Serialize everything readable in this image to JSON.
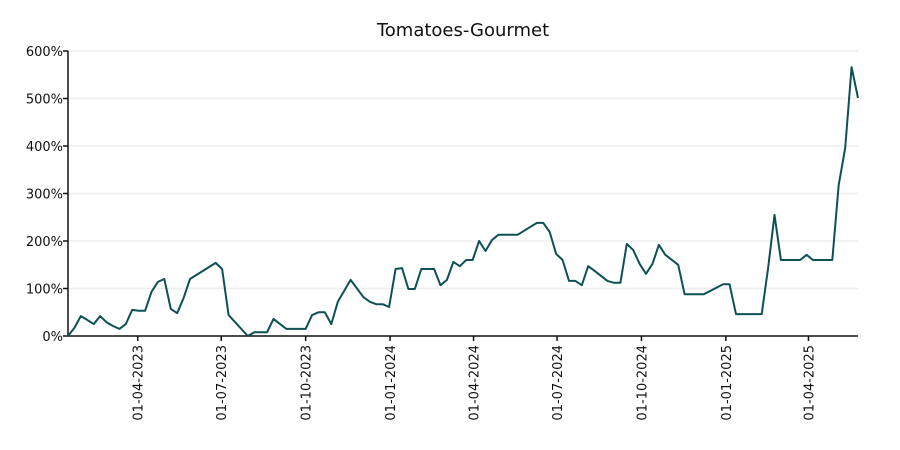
{
  "chart_data": {
    "type": "line",
    "title": "Tomatoes-Gourmet",
    "xlabel": "",
    "ylabel": "",
    "ylim": [
      0,
      600
    ],
    "xlim": [
      "2023-01-15",
      "2025-05-25"
    ],
    "grid": "horizontal",
    "y_ticks": [
      0,
      100,
      200,
      300,
      400,
      500,
      600
    ],
    "y_tick_labels": [
      "0%",
      "100%",
      "200%",
      "300%",
      "400%",
      "500%",
      "600%"
    ],
    "x_ticks": [
      "2023-04-01",
      "2023-07-01",
      "2023-10-01",
      "2024-01-01",
      "2024-04-01",
      "2024-07-01",
      "2024-10-01",
      "2025-01-01",
      "2025-04-01"
    ],
    "x_tick_labels": [
      "01-04-2023",
      "01-07-2023",
      "01-10-2023",
      "01-01-2024",
      "01-04-2024",
      "01-07-2024",
      "01-10-2024",
      "01-01-2025",
      "01-04-2025"
    ],
    "color": "#0d5155",
    "series": [
      {
        "name": "Tomatoes-Gourmet",
        "x": [
          "2023-01-15",
          "2023-01-22",
          "2023-01-29",
          "2023-02-05",
          "2023-02-12",
          "2023-02-19",
          "2023-02-26",
          "2023-03-05",
          "2023-03-12",
          "2023-03-19",
          "2023-03-26",
          "2023-04-02",
          "2023-04-09",
          "2023-04-16",
          "2023-04-23",
          "2023-04-30",
          "2023-05-07",
          "2023-05-14",
          "2023-05-21",
          "2023-05-28",
          "2023-06-25",
          "2023-07-02",
          "2023-07-09",
          "2023-07-30",
          "2023-08-06",
          "2023-08-20",
          "2023-08-27",
          "2023-09-10",
          "2023-10-01",
          "2023-10-08",
          "2023-10-15",
          "2023-10-22",
          "2023-10-29",
          "2023-11-05",
          "2023-11-19",
          "2023-12-03",
          "2023-12-10",
          "2023-12-17",
          "2023-12-24",
          "2023-12-31",
          "2024-01-07",
          "2024-01-14",
          "2024-01-21",
          "2024-01-28",
          "2024-02-04",
          "2024-02-18",
          "2024-02-25",
          "2024-03-03",
          "2024-03-10",
          "2024-03-17",
          "2024-03-24",
          "2024-03-31",
          "2024-04-07",
          "2024-04-14",
          "2024-04-21",
          "2024-04-28",
          "2024-05-19",
          "2024-06-02",
          "2024-06-09",
          "2024-06-16",
          "2024-06-23",
          "2024-06-30",
          "2024-07-07",
          "2024-07-14",
          "2024-07-21",
          "2024-07-28",
          "2024-08-04",
          "2024-08-11",
          "2024-08-25",
          "2024-09-01",
          "2024-09-08",
          "2024-09-15",
          "2024-09-22",
          "2024-09-29",
          "2024-10-06",
          "2024-10-13",
          "2024-10-20",
          "2024-10-27",
          "2024-11-10",
          "2024-11-17",
          "2024-12-08",
          "2024-12-29",
          "2025-01-05",
          "2025-01-12",
          "2025-02-09",
          "2025-02-16",
          "2025-02-23",
          "2025-03-02",
          "2025-03-23",
          "2025-03-30",
          "2025-04-06",
          "2025-04-27",
          "2025-05-04",
          "2025-05-11",
          "2025-05-18",
          "2025-05-25"
        ],
        "y": [
          0,
          17,
          42,
          34,
          25,
          42,
          29,
          21,
          15,
          25,
          55,
          53,
          53,
          93,
          114,
          120,
          57,
          48,
          80,
          120,
          154,
          141,
          44,
          0,
          8,
          8,
          36,
          15,
          15,
          44,
          50,
          50,
          25,
          72,
          118,
          82,
          72,
          67,
          67,
          61,
          141,
          143,
          99,
          99,
          141,
          141,
          107,
          118,
          156,
          147,
          160,
          160,
          200,
          179,
          202,
          213,
          213,
          230,
          238,
          238,
          219,
          173,
          160,
          116,
          116,
          107,
          147,
          137,
          116,
          112,
          112,
          194,
          181,
          152,
          131,
          152,
          192,
          171,
          150,
          88,
          88,
          109,
          109,
          46,
          46,
          143,
          255,
          160,
          160,
          171,
          160,
          160,
          318,
          396,
          566,
          501
        ]
      }
    ]
  }
}
